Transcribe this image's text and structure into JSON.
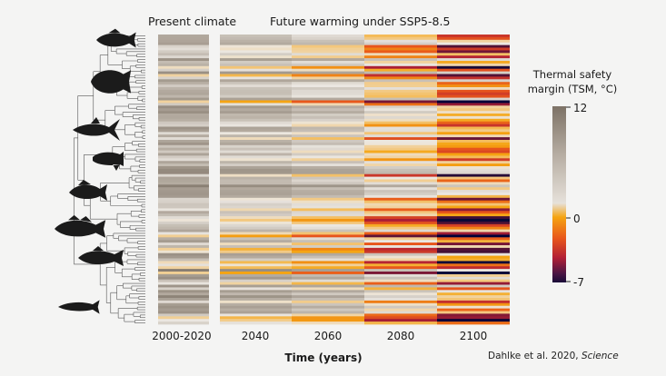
{
  "chart_data": {
    "type": "heatmap",
    "panel_titles": {
      "present": "Present climate",
      "future": "Future warming under SSP5-8.5"
    },
    "columns": [
      "2000-2020",
      "2040",
      "2060",
      "2080",
      "2100"
    ],
    "xlabel": "Time (years)",
    "species_count": 110,
    "colorbar": {
      "title_line1": "Thermal safety",
      "title_line2": "margin (TSM, °C)",
      "ticks": [
        "12",
        "0",
        "-7"
      ],
      "range": [
        -7,
        12
      ],
      "colors": {
        "high": "#7d7266",
        "mid": "#ece8e2",
        "zero": "#f5a411",
        "warm": "#e8561b",
        "hot": "#b21f35",
        "low": "#1a0b37"
      }
    },
    "silhouettes": [
      "fish-icon",
      "flatfish-icon",
      "tuna-icon",
      "eelpout-icon",
      "perch-icon",
      "cod-icon",
      "pollock-icon",
      "herring-icon"
    ]
  },
  "credit": {
    "text": "Dahlke et al. 2020,",
    "journal": "Science"
  }
}
